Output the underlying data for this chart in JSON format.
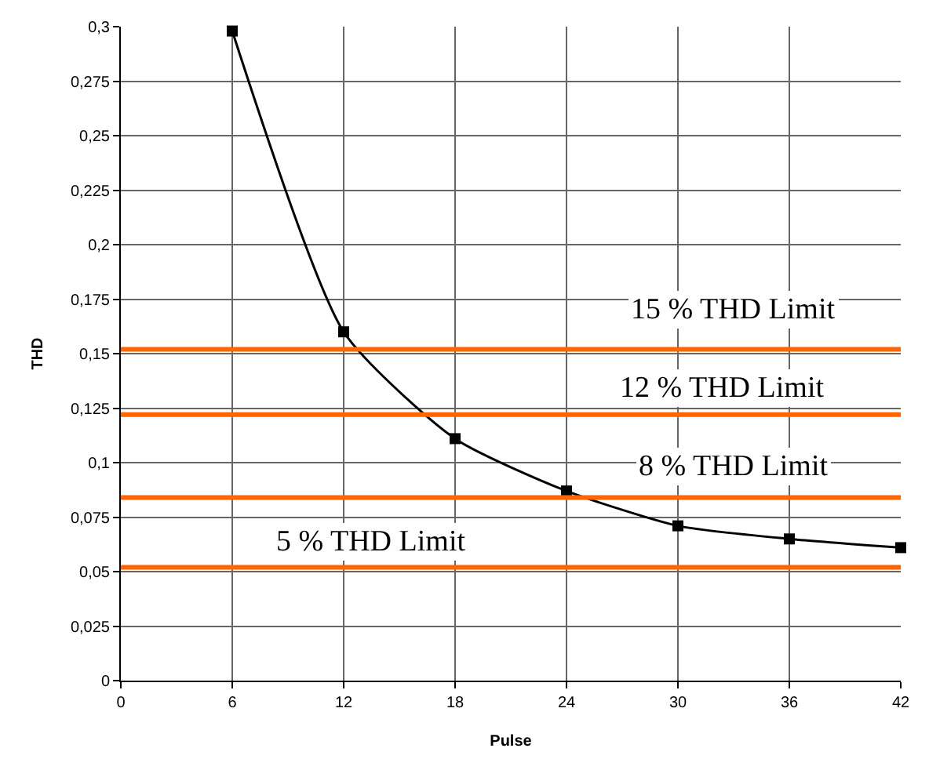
{
  "chart_data": {
    "type": "line",
    "xlabel": "Pulse",
    "ylabel": "THD",
    "x": [
      6,
      12,
      18,
      24,
      30,
      36,
      42
    ],
    "series": [
      {
        "color": "#000000",
        "values": [
          0.298,
          0.16,
          0.111,
          0.087,
          0.071,
          0.065,
          0.061
        ]
      }
    ],
    "marker": "square",
    "line_style": "solid",
    "grid": true,
    "xlim": [
      0,
      42
    ],
    "xticks": [
      0,
      6,
      12,
      18,
      24,
      30,
      36,
      42
    ],
    "ylim": [
      0,
      0.3
    ],
    "yticks": [
      0,
      {
        "value": 0.025,
        "label": "0,025"
      },
      {
        "value": 0.05,
        "label": "0,05"
      },
      {
        "value": 0.075,
        "label": "0,075"
      },
      {
        "value": 0.1,
        "label": "0,1"
      },
      {
        "value": 0.125,
        "label": "0,125"
      },
      {
        "value": 0.15,
        "label": "0,15"
      },
      {
        "value": 0.175,
        "label": "0,175"
      },
      {
        "value": 0.2,
        "label": "0,2"
      },
      {
        "value": 0.225,
        "label": "0,225"
      },
      {
        "value": 0.25,
        "label": "0,25"
      },
      {
        "value": 0.275,
        "label": "0,275"
      },
      {
        "value": 0.3,
        "label": "0,3"
      }
    ],
    "ref_lines": [
      {
        "axis": "y",
        "value": 0.152,
        "label": "15 % THD Limit",
        "color": "#ff6600"
      },
      {
        "axis": "y",
        "value": 0.122,
        "label": "12 % THD Limit",
        "color": "#ff6600"
      },
      {
        "axis": "y",
        "value": 0.084,
        "label": "8 % THD Limit",
        "color": "#ff6600"
      },
      {
        "axis": "y",
        "value": 0.052,
        "label": "5 % THD Limit",
        "color": "#ff6600"
      }
    ]
  }
}
